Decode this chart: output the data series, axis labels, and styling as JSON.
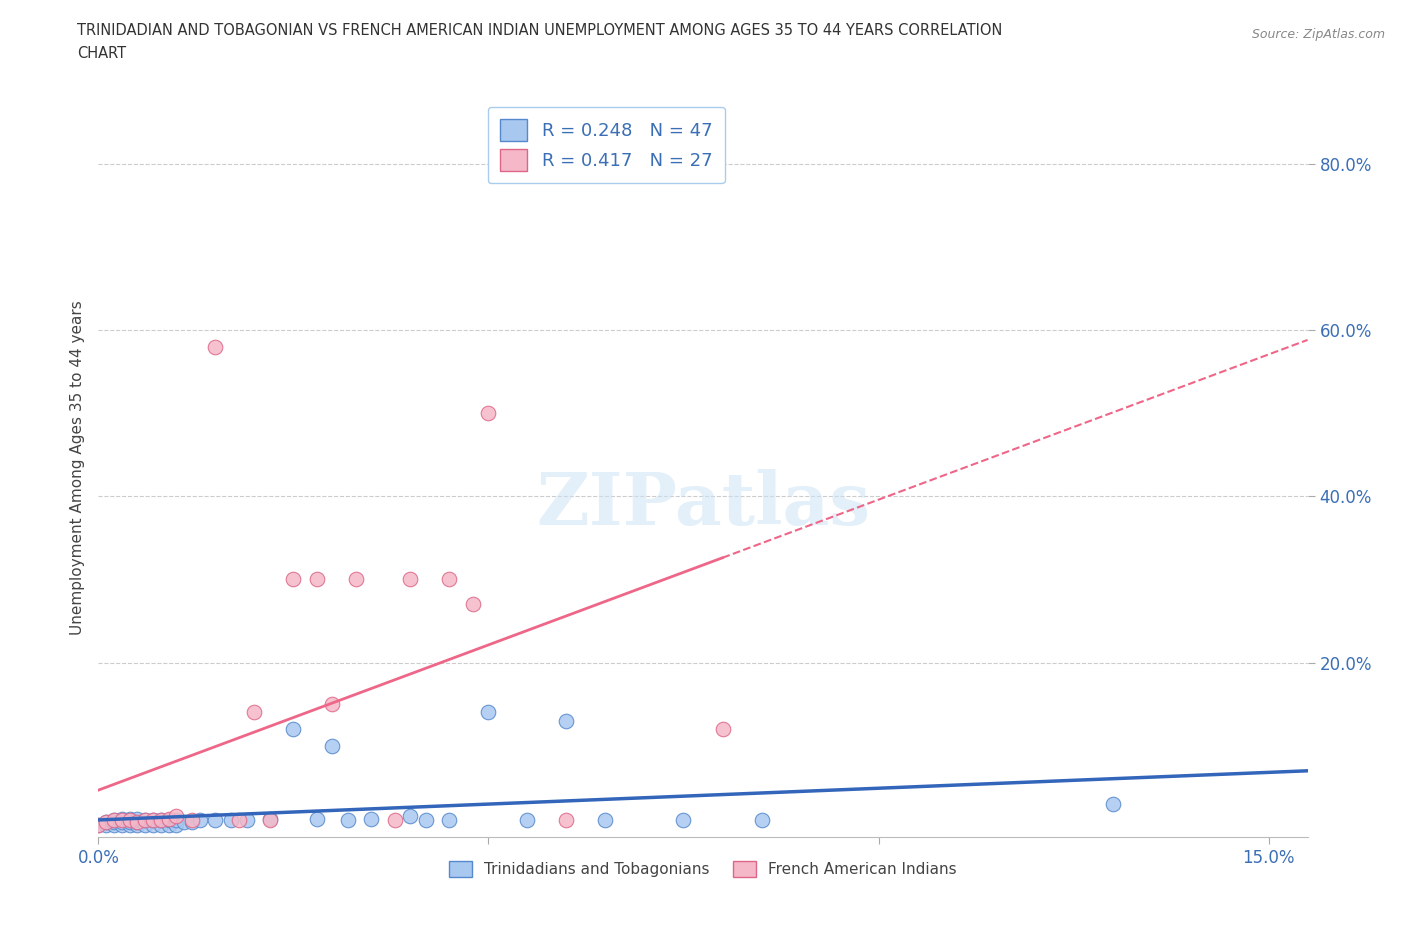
{
  "title_line1": "TRINIDADIAN AND TOBAGONIAN VS FRENCH AMERICAN INDIAN UNEMPLOYMENT AMONG AGES 35 TO 44 YEARS CORRELATION",
  "title_line2": "CHART",
  "source": "Source: ZipAtlas.com",
  "ylabel": "Unemployment Among Ages 35 to 44 years",
  "xlim": [
    0.0,
    0.155
  ],
  "ylim": [
    -0.01,
    0.88
  ],
  "r_blue": 0.248,
  "n_blue": 47,
  "r_pink": 0.417,
  "n_pink": 27,
  "blue_color": "#A8C8F0",
  "pink_color": "#F5B8C8",
  "blue_edge_color": "#5588CC",
  "pink_edge_color": "#DD6688",
  "blue_line_color": "#3366BB",
  "pink_line_color": "#EE6688",
  "legend_label_blue": "Trinidadians and Tobagonians",
  "legend_label_pink": "French American Indians",
  "grid_color": "#CCCCCC",
  "blue_x": [
    0.0,
    0.001,
    0.001,
    0.002,
    0.002,
    0.002,
    0.003,
    0.003,
    0.003,
    0.004,
    0.004,
    0.004,
    0.005,
    0.005,
    0.005,
    0.006,
    0.006,
    0.007,
    0.007,
    0.008,
    0.008,
    0.009,
    0.009,
    0.01,
    0.01,
    0.011,
    0.012,
    0.013,
    0.015,
    0.017,
    0.019,
    0.022,
    0.025,
    0.028,
    0.03,
    0.032,
    0.035,
    0.04,
    0.042,
    0.045,
    0.05,
    0.055,
    0.06,
    0.065,
    0.075,
    0.085,
    0.13
  ],
  "blue_y": [
    0.005,
    0.005,
    0.008,
    0.005,
    0.008,
    0.01,
    0.005,
    0.008,
    0.012,
    0.005,
    0.008,
    0.012,
    0.005,
    0.008,
    0.012,
    0.005,
    0.01,
    0.005,
    0.01,
    0.005,
    0.01,
    0.005,
    0.01,
    0.005,
    0.01,
    0.008,
    0.008,
    0.01,
    0.01,
    0.01,
    0.01,
    0.012,
    0.12,
    0.012,
    0.1,
    0.01,
    0.012,
    0.015,
    0.01,
    0.01,
    0.14,
    0.01,
    0.13,
    0.01,
    0.01,
    0.01,
    0.03
  ],
  "pink_x": [
    0.0,
    0.001,
    0.002,
    0.003,
    0.004,
    0.005,
    0.006,
    0.007,
    0.008,
    0.009,
    0.01,
    0.012,
    0.015,
    0.018,
    0.02,
    0.022,
    0.025,
    0.028,
    0.03,
    0.033,
    0.038,
    0.04,
    0.045,
    0.048,
    0.05,
    0.06,
    0.08
  ],
  "pink_y": [
    0.005,
    0.008,
    0.01,
    0.01,
    0.01,
    0.008,
    0.01,
    0.01,
    0.01,
    0.012,
    0.015,
    0.01,
    0.58,
    0.01,
    0.14,
    0.01,
    0.3,
    0.3,
    0.15,
    0.3,
    0.01,
    0.3,
    0.3,
    0.27,
    0.5,
    0.01,
    0.12
  ]
}
